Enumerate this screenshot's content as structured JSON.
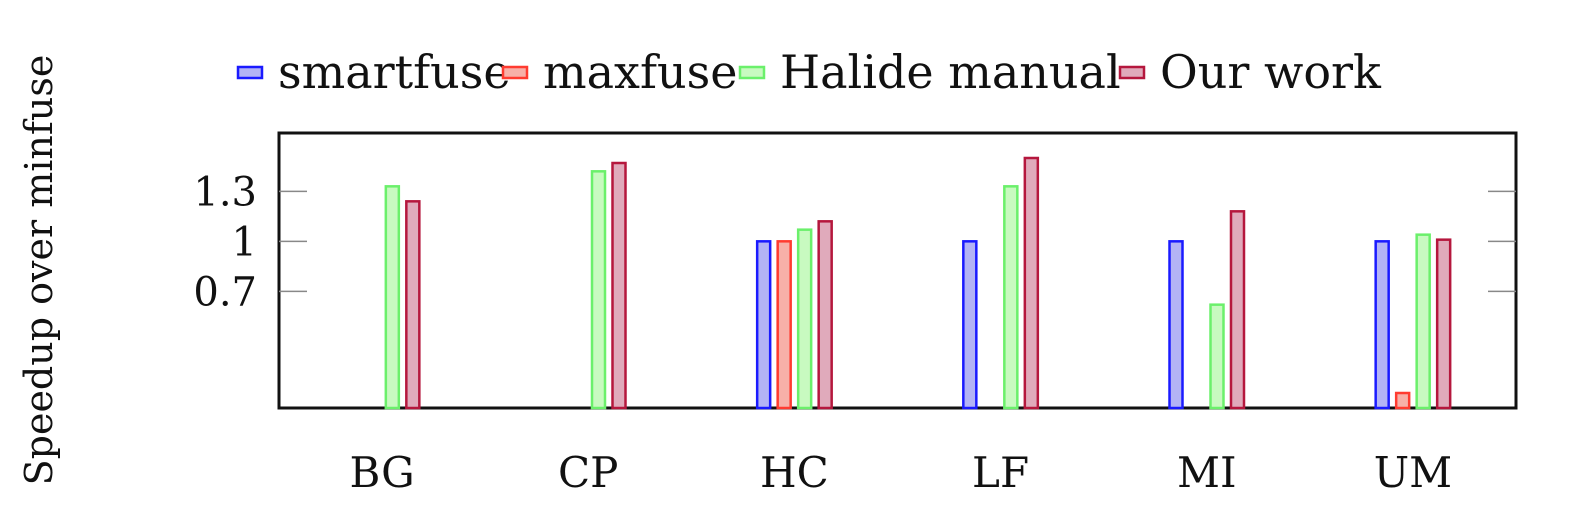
{
  "chart_data": {
    "type": "bar",
    "title": "",
    "xlabel": "",
    "ylabel": "Speedup over minfuse",
    "categories": [
      "BG",
      "CP",
      "HC",
      "LF",
      "MI",
      "UM"
    ],
    "ylim": [
      0,
      1.65
    ],
    "yticks": [
      0.7,
      1,
      1.3
    ],
    "ytick_labels": [
      "0.7",
      "1",
      "1.3"
    ],
    "legend_position": "top",
    "grid": false,
    "series": [
      {
        "name": "smartfuse",
        "fill": "#b3b3f5",
        "stroke": "#1a1aff",
        "values": [
          0,
          0,
          1.0,
          1.0,
          1.0,
          1.0
        ]
      },
      {
        "name": "maxfuse",
        "fill": "#f7b0a8",
        "stroke": "#ff3b30",
        "values": [
          0,
          0,
          1.0,
          0,
          0,
          0.09
        ]
      },
      {
        "name": "Halide manual",
        "fill": "#c8fac0",
        "stroke": "#6bf06b",
        "values": [
          1.33,
          1.42,
          1.07,
          1.33,
          0.62,
          1.04
        ]
      },
      {
        "name": "Our work",
        "fill": "#e0aabb",
        "stroke": "#b5173d",
        "values": [
          1.24,
          1.47,
          1.12,
          1.5,
          1.18,
          1.01
        ]
      }
    ]
  }
}
